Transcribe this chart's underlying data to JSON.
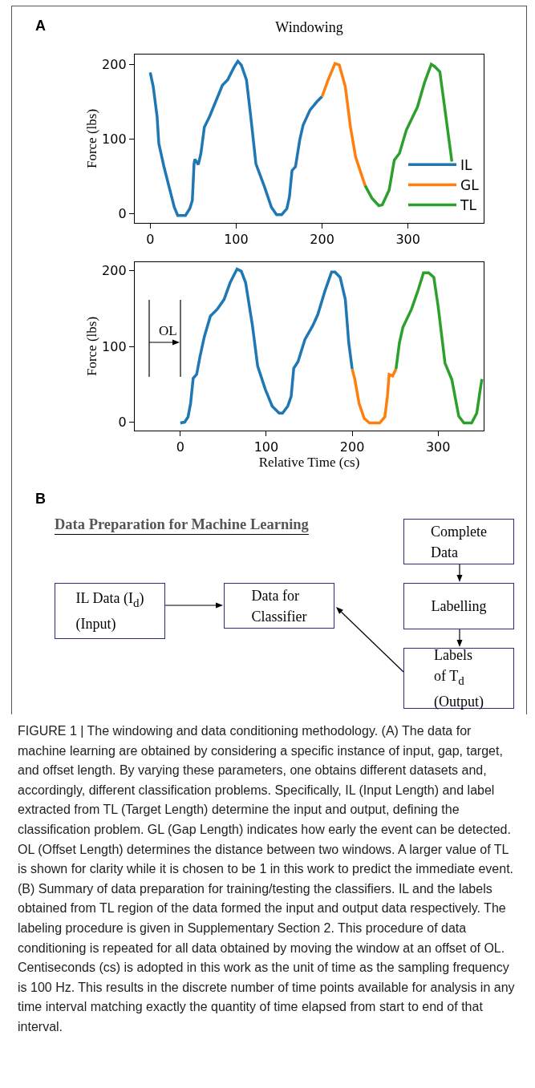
{
  "chart_data": [
    {
      "type": "line",
      "title": "Windowing",
      "ylabel": "Force (lbs)",
      "annotations": [
        "A"
      ],
      "legend": "bottom right",
      "xlim": [
        -18,
        388
      ],
      "ylim": [
        -12,
        213
      ],
      "xticks": [
        0,
        100,
        200,
        300
      ],
      "yticks": [
        0,
        100,
        200
      ],
      "series": [
        {
          "name": "IL",
          "color": "#1f77b4",
          "x": [
            0,
            3.5,
            8,
            10,
            16,
            22,
            28,
            32,
            41,
            46,
            49,
            51,
            52,
            56,
            59,
            63,
            69,
            84,
            90,
            98,
            102,
            106,
            112,
            117,
            123,
            133,
            141,
            147,
            153,
            159,
            162,
            165,
            169,
            174,
            178,
            186,
            194,
            200
          ],
          "values": [
            189,
            170,
            130,
            94,
            63,
            36,
            9,
            -2,
            -2,
            7,
            18,
            67,
            73,
            66,
            81,
            116,
            130,
            172,
            179,
            197,
            204,
            199,
            179,
            130,
            67,
            36,
            9,
            -1,
            -1,
            7,
            23,
            58,
            63,
            99,
            119,
            139,
            150,
            157
          ]
        },
        {
          "name": "GL",
          "color": "#ff7f0e",
          "x": [
            200,
            207,
            215,
            220,
            227,
            233,
            239,
            250
          ],
          "values": [
            157,
            179,
            201,
            199,
            170,
            116,
            76,
            38
          ]
        },
        {
          "name": "TL",
          "color": "#2ca02c",
          "x": [
            250,
            258,
            266,
            270,
            278,
            284,
            290,
            298,
            311,
            319,
            327,
            331,
            337,
            343,
            351
          ],
          "values": [
            38,
            21,
            11,
            12,
            32,
            72,
            81,
            112,
            143,
            175,
            200,
            197,
            190,
            139,
            70
          ]
        }
      ]
    },
    {
      "type": "line",
      "xlabel": "Relative Time (cs)",
      "ylabel": "Force (lbs)",
      "annotations": [
        "OL"
      ],
      "xlim": [
        -53,
        353
      ],
      "ylim": [
        -11,
        211
      ],
      "xticks": [
        0,
        100,
        200,
        300
      ],
      "yticks": [
        0,
        100,
        200
      ],
      "series": [
        {
          "color": "#1f77b4",
          "x": [
            0,
            5,
            9,
            12,
            15,
            19,
            23,
            28,
            35,
            43,
            51,
            58,
            66,
            71,
            76,
            84,
            90,
            99,
            107,
            115,
            119,
            125,
            129,
            132,
            137,
            145,
            154,
            160,
            168,
            176,
            180,
            186,
            192,
            196,
            200
          ],
          "values": [
            -1,
            0,
            7,
            25,
            58,
            63,
            87,
            113,
            140,
            149,
            162,
            184,
            202,
            199,
            184,
            127,
            74,
            43,
            21,
            12,
            12,
            21,
            34,
            71,
            80,
            109,
            127,
            142,
            172,
            198,
            198,
            191,
            162,
            105,
            70
          ]
        },
        {
          "color": "#ff7f0e",
          "x": [
            200,
            203,
            208,
            214,
            220,
            232,
            238,
            241,
            243,
            247,
            251
          ],
          "values": [
            70,
            57,
            25,
            5,
            -1,
            -1,
            7,
            34,
            63,
            61,
            70
          ]
        },
        {
          "color": "#2ca02c",
          "x": [
            251,
            255,
            259,
            269,
            277,
            283,
            289,
            295,
            300,
            308,
            316,
            324,
            330,
            339,
            345,
            349,
            351
          ],
          "values": [
            70,
            105,
            125,
            149,
            175,
            197,
            197,
            191,
            153,
            78,
            56,
            8,
            -1,
            -1,
            12,
            43,
            57
          ]
        }
      ]
    },
    {
      "type": "other",
      "title": "Data Preparation for Machine Learning",
      "annotations": [
        "B",
        "Complete\nData",
        "Labelling",
        "Labels\nof T$_{d}$\n(Output)",
        "IL Data (I$_{d}$)\n(Input)",
        "Data for\nClassifier",
        "FIGURE 1 | The windowing and data conditioning methodology. (A) The data for machine learning are obtained by considering a specific instance of input, gap, target, and offset length. By varying these parameters, one obtains different datasets and, accordingly, different classification problems. Specifically, IL (Input Length) and label extracted from TL (Target Length) determine the input and output, defining the classification problem. GL (Gap Length) indicates how early the event can be detected. OL (Offset Length) determines the distance between two windows. A larger value of TL is shown for clarity while it is chosen to be 1 in this work to predict the immediate event. (B) Summary of data preparation for training/testing the classifiers. IL and the labels obtained from TL region of the data formed the input and output data respectively. The labeling procedure is given in Supplementary Section 2. This procedure of data conditioning is repeated for all data obtained by moving the window at an offset of OL. Centiseconds (cs) is adopted in this work as the unit of time as the sampling frequency is 100 Hz. This results in the discrete number of time points available for analysis in any time interval matching exactly the quantity of time elapsed from start to end of that interval."
      ]
    }
  ]
}
